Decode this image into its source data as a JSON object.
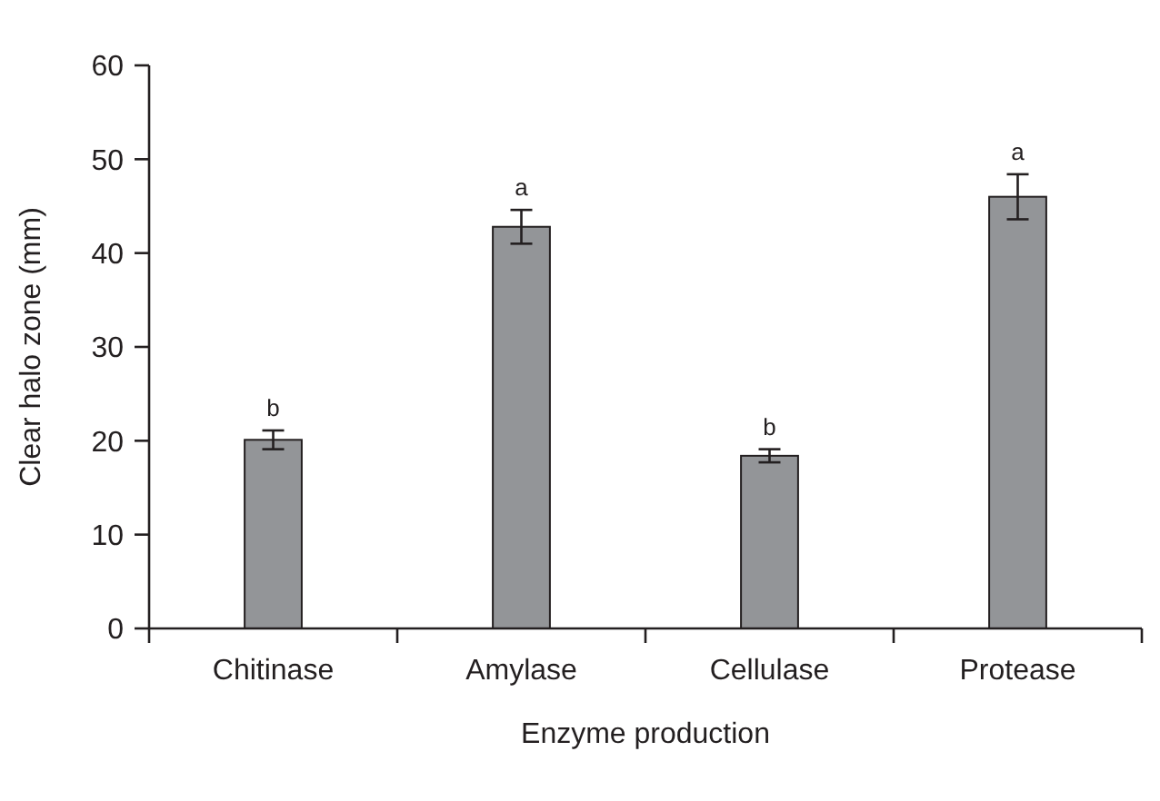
{
  "chart_data": {
    "type": "bar",
    "xlabel": "Enzyme production",
    "ylabel": "Clear halo zone (mm)",
    "categories": [
      "Chitinase",
      "Amylase",
      "Cellulase",
      "Protease"
    ],
    "values": [
      20.1,
      42.8,
      18.4,
      46.0
    ],
    "errors": [
      1.0,
      1.8,
      0.7,
      2.4
    ],
    "color": "#939598",
    "ylim": [
      0,
      60
    ],
    "yticks": [
      0,
      10,
      20,
      30,
      40,
      50,
      60
    ],
    "grid": false,
    "annotations": [
      {
        "text": "b",
        "x": "Chitinase",
        "y": 21.1
      },
      {
        "text": "a",
        "x": "Amylase",
        "y": 44.6
      },
      {
        "text": "b",
        "x": "Cellulase",
        "y": 19.1
      },
      {
        "text": "a",
        "x": "Protease",
        "y": 48.4
      }
    ]
  }
}
